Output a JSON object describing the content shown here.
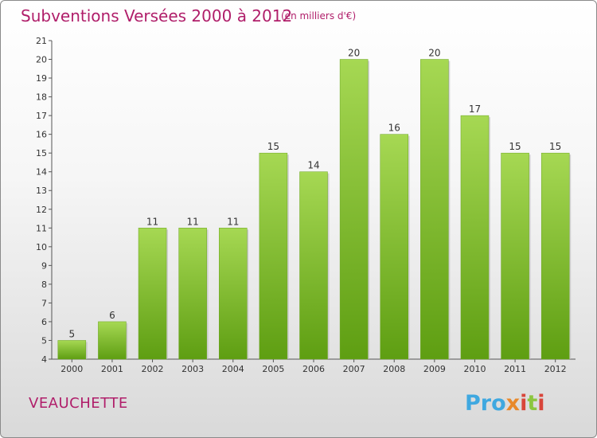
{
  "header": {
    "title": "Subventions Versées 2000 à 2012",
    "unit": "(en milliers d'€)"
  },
  "footer": {
    "commune": "VEAUCHETTE",
    "brand": "Proxiti"
  },
  "colors": {
    "title": "#b01e6a",
    "bar_light": "#a6d853",
    "bar_dark": "#5e9e12"
  },
  "chart_data": {
    "type": "bar",
    "title": "Subventions Versées 2000 à 2012",
    "subtitle": "(en milliers d'€)",
    "categories": [
      "2000",
      "2001",
      "2002",
      "2003",
      "2004",
      "2005",
      "2006",
      "2007",
      "2008",
      "2009",
      "2010",
      "2011",
      "2012"
    ],
    "values": [
      5,
      6,
      11,
      11,
      11,
      15,
      14,
      20,
      16,
      20,
      17,
      15,
      15
    ],
    "ylim": [
      4,
      21
    ],
    "yticks": [
      4,
      5,
      6,
      7,
      8,
      9,
      10,
      11,
      12,
      13,
      14,
      15,
      16,
      17,
      18,
      19,
      20,
      21
    ],
    "grid": false,
    "xlabel": "",
    "ylabel": ""
  }
}
